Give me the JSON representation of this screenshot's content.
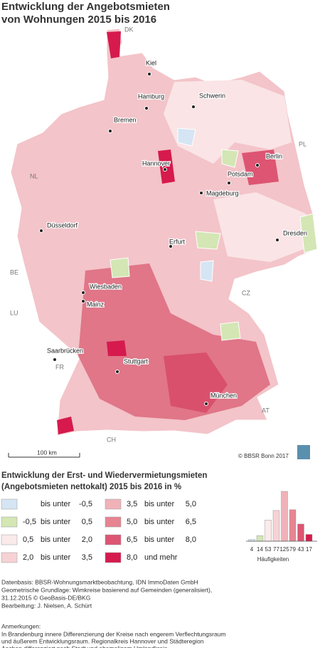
{
  "header": {
    "title_lines": [
      "Entwicklung der Angebotsmieten",
      "von Wohnungen 2015 bis 2016"
    ]
  },
  "map": {
    "countries": [
      "DK",
      "PL",
      "NL",
      "BE",
      "LU",
      "FR",
      "CH",
      "AT",
      "CZ"
    ],
    "cities": [
      "Kiel",
      "Hamburg",
      "Schwerin",
      "Bremen",
      "Berlin",
      "Hannover",
      "Potsdam",
      "Magdeburg",
      "Düsseldorf",
      "Dresden",
      "Erfurt",
      "Wiesbaden",
      "Mainz",
      "Saarbrücken",
      "Stuttgart",
      "München"
    ],
    "scale": "100 km",
    "copyright": "© BBSR Bonn 2017"
  },
  "legend": {
    "title_lines": [
      "Entwicklung der Erst- und Wiedervermietungsmieten",
      "(Angebotsmieten nettokalt) 2015 bis 2016 in %"
    ],
    "classes": [
      {
        "color": "#d5e5f3",
        "parts": [
          "bis unter",
          "-0,5"
        ]
      },
      {
        "color": "#d3e6b4",
        "parts": [
          "-0,5",
          "bis unter",
          "0,5"
        ]
      },
      {
        "color": "#fbeaea",
        "parts": [
          "0,5",
          "bis unter",
          "2,0"
        ]
      },
      {
        "color": "#f6d2d5",
        "parts": [
          "2,0",
          "bis unter",
          "3,5"
        ]
      },
      {
        "color": "#f0b2b9",
        "parts": [
          "3,5",
          "bis unter",
          "5,0"
        ]
      },
      {
        "color": "#e78491",
        "parts": [
          "5,0",
          "bis unter",
          "6,5"
        ]
      },
      {
        "color": "#dd5572",
        "parts": [
          "6,5",
          "bis unter",
          "8,0"
        ]
      },
      {
        "color": "#d61a4d",
        "parts": [
          "8,0",
          "und mehr"
        ]
      }
    ]
  },
  "histogram": {
    "counts": [
      4,
      14,
      53,
      77,
      125,
      79,
      43,
      17
    ],
    "label": "Häufigkeiten"
  },
  "footer": {
    "lines": [
      "Datenbasis: BBSR-Wohnungsmarktbeobachtung, IDN ImmoDaten GmbH",
      "Geometrische Grundlage: Wimkreise basierend auf Gemeinden (generalisiert),",
      "31.12.2015 © GeoBasis-DE/BKG",
      "Bearbeitung: J. Nielsen, A. Schürt"
    ],
    "notes_title": "Anmerkungen:",
    "notes": [
      "In Brandenburg innere Differenzierung der Kreise nach engerem Verflechtungsraum",
      "und äußerem Entwicklungsraum. Regionalkreis Hannover und Städteregion",
      "Aachen differenziert nach Stadt und ehemaligem Umlandkreis."
    ]
  }
}
